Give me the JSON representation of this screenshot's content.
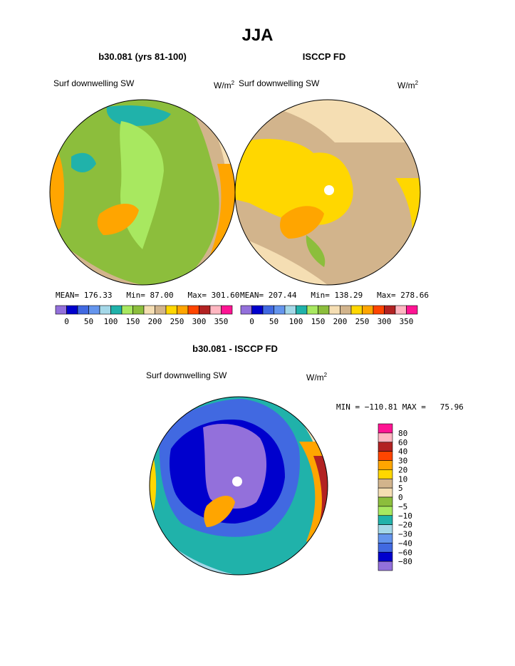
{
  "page": {
    "title": "JJA"
  },
  "panels": [
    {
      "title": "b30.081 (yrs 81-100)",
      "field": "Surf downwelling SW",
      "units_base": "W/m",
      "units_exp": "2",
      "stats": {
        "mean_label": "MEAN=",
        "mean": "176.33",
        "min_label": "Min=",
        "min": "87.00",
        "max_label": "Max=",
        "max": "301.60"
      }
    },
    {
      "title": "ISCCP FD",
      "field": "Surf downwelling SW",
      "units_base": "W/m",
      "units_exp": "2",
      "stats": {
        "mean_label": "MEAN=",
        "mean": "207.44",
        "min_label": "Min=",
        "min": "138.29",
        "max_label": "Max=",
        "max": "278.66"
      }
    },
    {
      "title": "b30.081 - ISCCP FD",
      "field": "Surf downwelling SW",
      "units_base": "W/m",
      "units_exp": "2",
      "minmax": "MIN = −110.81 MAX =   75.96"
    }
  ],
  "colorbar_top": {
    "colors": [
      "#9370db",
      "#0000cd",
      "#4169e1",
      "#6495ed",
      "#a4d8e8",
      "#20b2aa",
      "#a8e860",
      "#8cbe3c",
      "#f5deb3",
      "#d2b48c",
      "#ffd700",
      "#ffa500",
      "#ff4500",
      "#b22222",
      "#ffb6c1",
      "#ff1493"
    ],
    "tick_labels": [
      "0",
      "50",
      "100",
      "150",
      "200",
      "250",
      "300",
      "350"
    ]
  },
  "colorbar_diff": {
    "colors": [
      "#ff1493",
      "#ffb6c1",
      "#b22222",
      "#ff4500",
      "#ffa500",
      "#ffd700",
      "#d2b48c",
      "#f5deb3",
      "#8cbe3c",
      "#a8e860",
      "#20b2aa",
      "#a4d8e8",
      "#6495ed",
      "#4169e1",
      "#0000cd",
      "#9370db"
    ],
    "tick_labels": [
      "80",
      "60",
      "40",
      "30",
      "20",
      "10",
      "5",
      "0",
      "−5",
      "−10",
      "−20",
      "−30",
      "−40",
      "−60",
      "−80"
    ]
  }
}
